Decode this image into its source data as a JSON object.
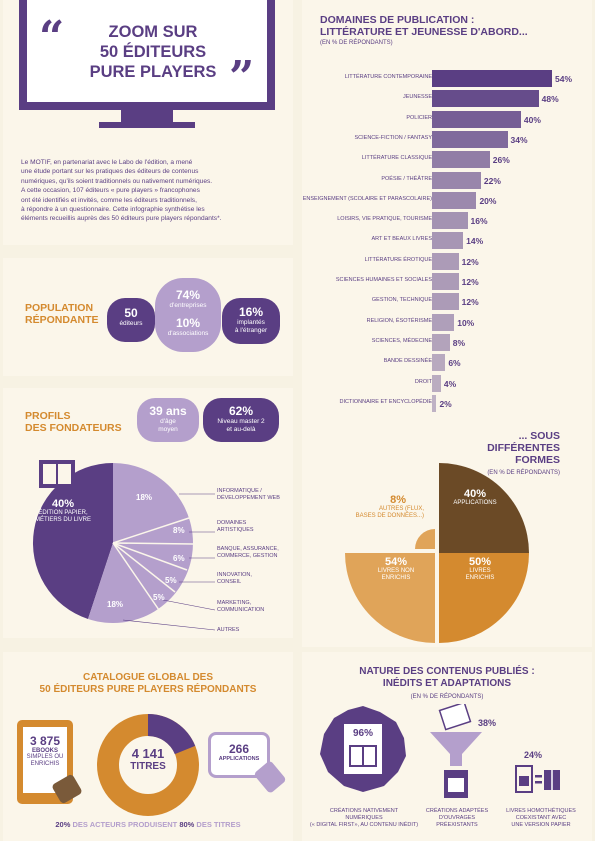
{
  "header": {
    "title_line1": "ZOOM SUR",
    "title_line2": "50 ÉDITEURS",
    "title_line3": "PURE PLAYERS"
  },
  "intro": {
    "lines": [
      "Le MOTIF, en partenariat avec le Labo de l'édition, a mené",
      "une étude portant sur les pratiques des éditeurs de contenus",
      "numériques, qu'ils soient traditionnels ou nativement numériques.",
      "A cette occasion, 107 éditeurs « pure players » francophones",
      "ont été identifiés et invités, comme les éditeurs traditionnels,",
      "à répondre à un questionnaire. Cette infographie synthétise les",
      "éléments recueillis auprès des 50 éditeurs pure players répondants*."
    ]
  },
  "population": {
    "title_line1": "POPULATION",
    "title_line2": "RÉPONDANTE",
    "editeurs_value": "50",
    "editeurs_label": "éditeurs",
    "entreprises_value": "74%",
    "entreprises_label": "d'entreprises",
    "associations_value": "10%",
    "associations_label": "d'associations",
    "etranger_value": "16%",
    "etranger_label1": "implantés",
    "etranger_label2": "à l'étranger"
  },
  "fondateurs": {
    "title_line1": "PROFILS",
    "title_line2": "DES FONDATEURS",
    "age_value": "39 ans",
    "age_label1": "d'âge",
    "age_label2": "moyen",
    "master_value": "62%",
    "master_label1": "Niveau master 2",
    "master_label2": "et au-delà",
    "main_value": "40%",
    "main_label1": "ÉDITION PAPIER,",
    "main_label2": "MÉTIERS DU LIVRE",
    "slices": [
      {
        "value": "18%",
        "label1": "INFORMATIQUE /",
        "label2": "DÉVELOPPEMENT WEB"
      },
      {
        "value": "8%",
        "label1": "DOMAINES",
        "label2": "ARTISTIQUES"
      },
      {
        "value": "6%",
        "label1": "BANQUE, ASSURANCE,",
        "label2": "COMMERCE, GESTION"
      },
      {
        "value": "5%",
        "label1": "INNOVATION,",
        "label2": "CONSEIL"
      },
      {
        "value": "5%",
        "label1": "MARKETING,",
        "label2": "COMMUNICATION"
      },
      {
        "value": "18%",
        "label1": "AUTRES",
        "label2": ""
      }
    ]
  },
  "catalogue": {
    "title_line1": "CATALOGUE GLOBAL DES",
    "title_line2": "50 ÉDITEURS PURE PLAYERS RÉPONDANTS",
    "ebooks_value": "3 875",
    "ebooks_label": "EBOOKS",
    "ebooks_sub1": "SIMPLES OU",
    "ebooks_sub2": "ENRICHIS",
    "titres_value": "4 141",
    "titres_label": "TITRES",
    "apps_value": "266",
    "apps_label": "APPLICATIONS",
    "footer_a": "20%",
    "footer_b": " DES ACTEURS PRODUISENT ",
    "footer_c": "80%",
    "footer_d": " DES TITRES"
  },
  "chart_data": [
    {
      "type": "bar",
      "title": "DOMAINES DE PUBLICATION : LITTÉRATURE ET JEUNESSE D'ABORD...",
      "subtitle": "(EN % DE RÉPONDANTS)",
      "categories": [
        "LITTÉRATURE CONTEMPORAINE",
        "JEUNESSE",
        "POLICIER",
        "SCIENCE-FICTION / FANTASY",
        "LITTÉRATURE CLASSIQUE",
        "POÉSIE / THÉÂTRE",
        "ENSEIGNEMENT (SCOLAIRE ET PARASCOLAIRE)",
        "LOISIRS, VIE PRATIQUE, TOURISME",
        "ART ET BEAUX LIVRES",
        "LITTÉRATURE ÉROTIQUE",
        "SCIENCES HUMAINES ET SOCIALES",
        "GESTION, TECHNIQUE",
        "RELIGION, ÉSOTÉRISME",
        "SCIENCES, MÉDECINE",
        "BANDE DESSINÉE",
        "DROIT",
        "DICTIONNAIRE ET ENCYCLOPÉDIE"
      ],
      "values": [
        54,
        48,
        40,
        34,
        26,
        22,
        20,
        16,
        14,
        12,
        12,
        12,
        10,
        8,
        6,
        4,
        2
      ],
      "labels": [
        "54%",
        "48%",
        "40%",
        "34%",
        "26%",
        "22%",
        "20%",
        "16%",
        "14%",
        "12%",
        "12%",
        "12%",
        "10%",
        "8%",
        "6%",
        "4%",
        "2%"
      ]
    },
    {
      "type": "pie",
      "title": "... SOUS DIFFÉRENTES FORMES",
      "subtitle": "(EN % DE RÉPONDANTS)",
      "slices": [
        {
          "name": "APPLICATIONS",
          "value": 40,
          "label": "40%"
        },
        {
          "name": "LIVRES ENRICHIS",
          "value": 50,
          "label": "50%"
        },
        {
          "name": "LIVRES NON ENRICHIS",
          "value": 54,
          "label": "54%"
        },
        {
          "name": "AUTRES (FLUX, BASES DE DONNÉES...)",
          "value": 8,
          "label": "8%"
        }
      ]
    }
  ],
  "pie_texts": {
    "title_line1": "... SOUS",
    "title_line2": "DIFFÉRENTES",
    "title_line3": "FORMES",
    "subtitle": "(EN % DE RÉPONDANTS)",
    "app_value": "40%",
    "app_label": "APPLICATIONS",
    "enr_value": "50%",
    "enr_label1": "LIVRES",
    "enr_label2": "ENRICHIS",
    "non_value": "54%",
    "non_label1": "LIVRES NON",
    "non_label2": "ENRICHIS",
    "aut_value": "8%",
    "aut_label1": "AUTRES (FLUX,",
    "aut_label2": "BASES DE DONNÉES...)"
  },
  "bar_texts": {
    "title_line1": "DOMAINES DE PUBLICATION :",
    "title_line2": "LITTÉRATURE ET JEUNESSE D'ABORD...",
    "subtitle": "(EN % DE RÉPONDANTS)"
  },
  "nature": {
    "title_line1": "NATURE DES CONTENUS PUBLIÉS :",
    "title_line2": "INÉDITS ET ADAPTATIONS",
    "subtitle": "(EN % DE RÉPONDANTS)",
    "native_value": "96%",
    "native_label1": "CRÉATIONS NATIVEMENT",
    "native_label2": "NUMÉRIQUES",
    "native_label3": "(« DIGITAL FIRST», AU CONTENU INÉDIT)",
    "adapt_value": "38%",
    "adapt_label1": "CRÉATIONS ADAPTÉES",
    "adapt_label2": "D'OUVRAGES",
    "adapt_label3": "PRÉEXISTANTS",
    "homo_value": "24%",
    "homo_label1": "LIVRES HOMOTHÉTIQUES",
    "homo_label2": "COEXISTANT AVEC",
    "homo_label3": "UNE VERSION PAPIER"
  },
  "colors": {
    "purple": "#5a3e83",
    "orange": "#d48a2f",
    "lilac": "#b49fcc",
    "brown": "#6b4a26",
    "cream": "#fbf6ea"
  }
}
